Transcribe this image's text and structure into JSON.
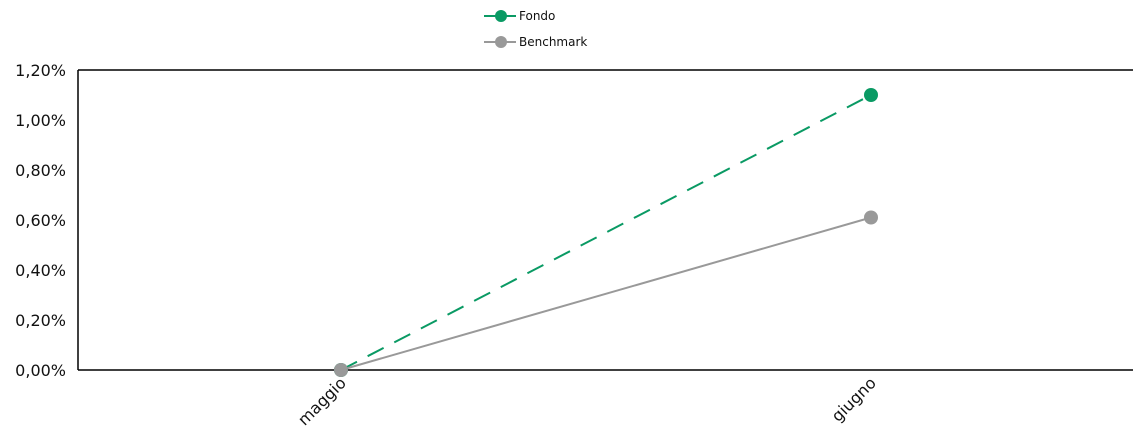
{
  "chart_data": {
    "type": "line",
    "categories": [
      "maggio",
      "giugno"
    ],
    "series": [
      {
        "name": "Fondo",
        "values": [
          0.0,
          1.1
        ],
        "color": "#0a9a64",
        "dash": "dashed"
      },
      {
        "name": "Benchmark",
        "values": [
          0.0,
          0.61
        ],
        "color": "#999999",
        "dash": "solid"
      }
    ],
    "y_ticks": [
      "0,00%",
      "0,20%",
      "0,40%",
      "0,60%",
      "0,80%",
      "1,00%",
      "1,20%"
    ],
    "ylim": [
      0,
      1.2
    ],
    "legend_position": "top-center",
    "grid": false
  }
}
